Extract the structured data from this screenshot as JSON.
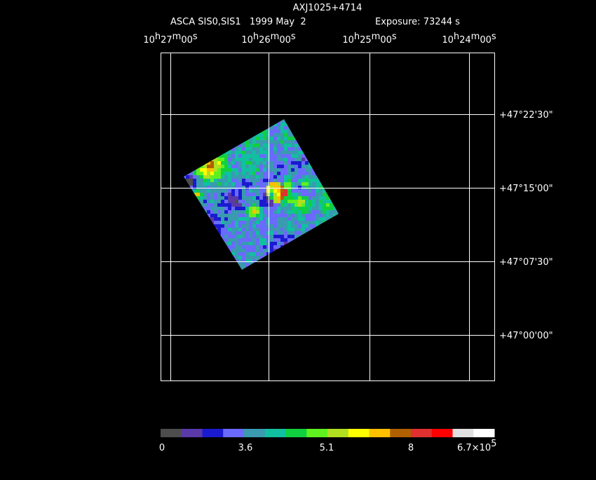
{
  "header": {
    "title": "AXJ1025+4714",
    "instrument": "ASCA SIS0,SIS1",
    "date": "1999 May  2",
    "exposure": "Exposure: 73244 s"
  },
  "ra_labels": [
    [
      "10",
      "h",
      "27",
      "m",
      "00",
      "s"
    ],
    [
      "10",
      "h",
      "26",
      "m",
      "00",
      "s"
    ],
    [
      "10",
      "h",
      "25",
      "m",
      "00",
      "s"
    ],
    [
      "10",
      "h",
      "24",
      "m",
      "00",
      "s"
    ]
  ],
  "dec_labels": [
    "+47°22'30\"",
    "+47°15'00\"",
    "+47°07'30\"",
    "+47°00'00\""
  ],
  "colorbar": {
    "colors": [
      "#4d4d4d",
      "#5a3aa8",
      "#1a1ad0",
      "#6a6aff",
      "#3a9ab0",
      "#10c0a0",
      "#10d040",
      "#60f020",
      "#b0e020",
      "#ffff00",
      "#ffc000",
      "#b06000",
      "#e03030",
      "#ff0000",
      "#e0e0e0",
      "#ffffff"
    ],
    "labels": [
      "0",
      "3.6",
      "5.1",
      "8"
    ],
    "max_label": [
      "6.7×10",
      "5"
    ]
  }
}
